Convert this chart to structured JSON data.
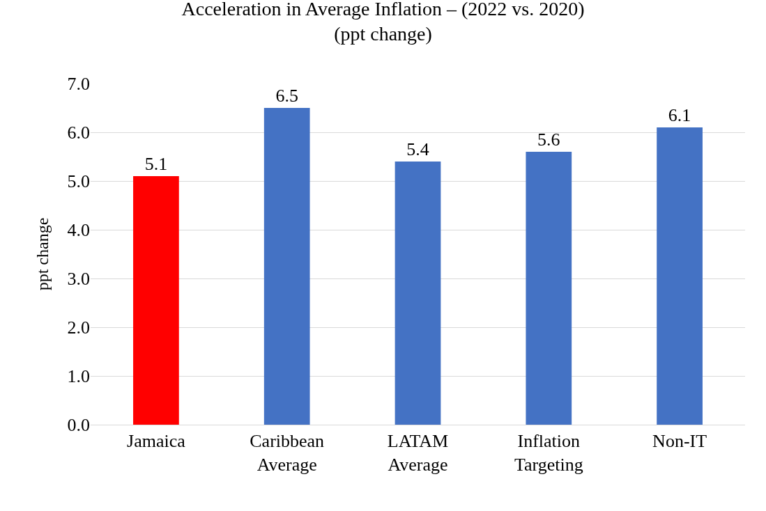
{
  "chart_data": {
    "type": "bar",
    "title": "Acceleration in Average Inflation – (2022 vs. 2020)",
    "subtitle": "(ppt change)",
    "ylabel": "ppt change",
    "categories": [
      "Jamaica",
      "Caribbean Average",
      "LATAM Average",
      "Inflation Targeting",
      "Non-IT"
    ],
    "values": [
      5.1,
      6.5,
      5.4,
      5.6,
      6.1
    ],
    "colors": [
      "#ff0000",
      "#4472c4",
      "#4472c4",
      "#4472c4",
      "#4472c4"
    ],
    "ylim": [
      0,
      7
    ],
    "yticks": [
      {
        "value": 0,
        "label": "0.0"
      },
      {
        "value": 1,
        "label": "1.0"
      },
      {
        "value": 2,
        "label": "2.0"
      },
      {
        "value": 3,
        "label": "3.0"
      },
      {
        "value": 4,
        "label": "4.0"
      },
      {
        "value": 5,
        "label": "5.0"
      },
      {
        "value": 6,
        "label": "6.0"
      },
      {
        "value": 7,
        "label": "7.0"
      }
    ],
    "grid": "y",
    "data_labels": true,
    "legend": false
  }
}
